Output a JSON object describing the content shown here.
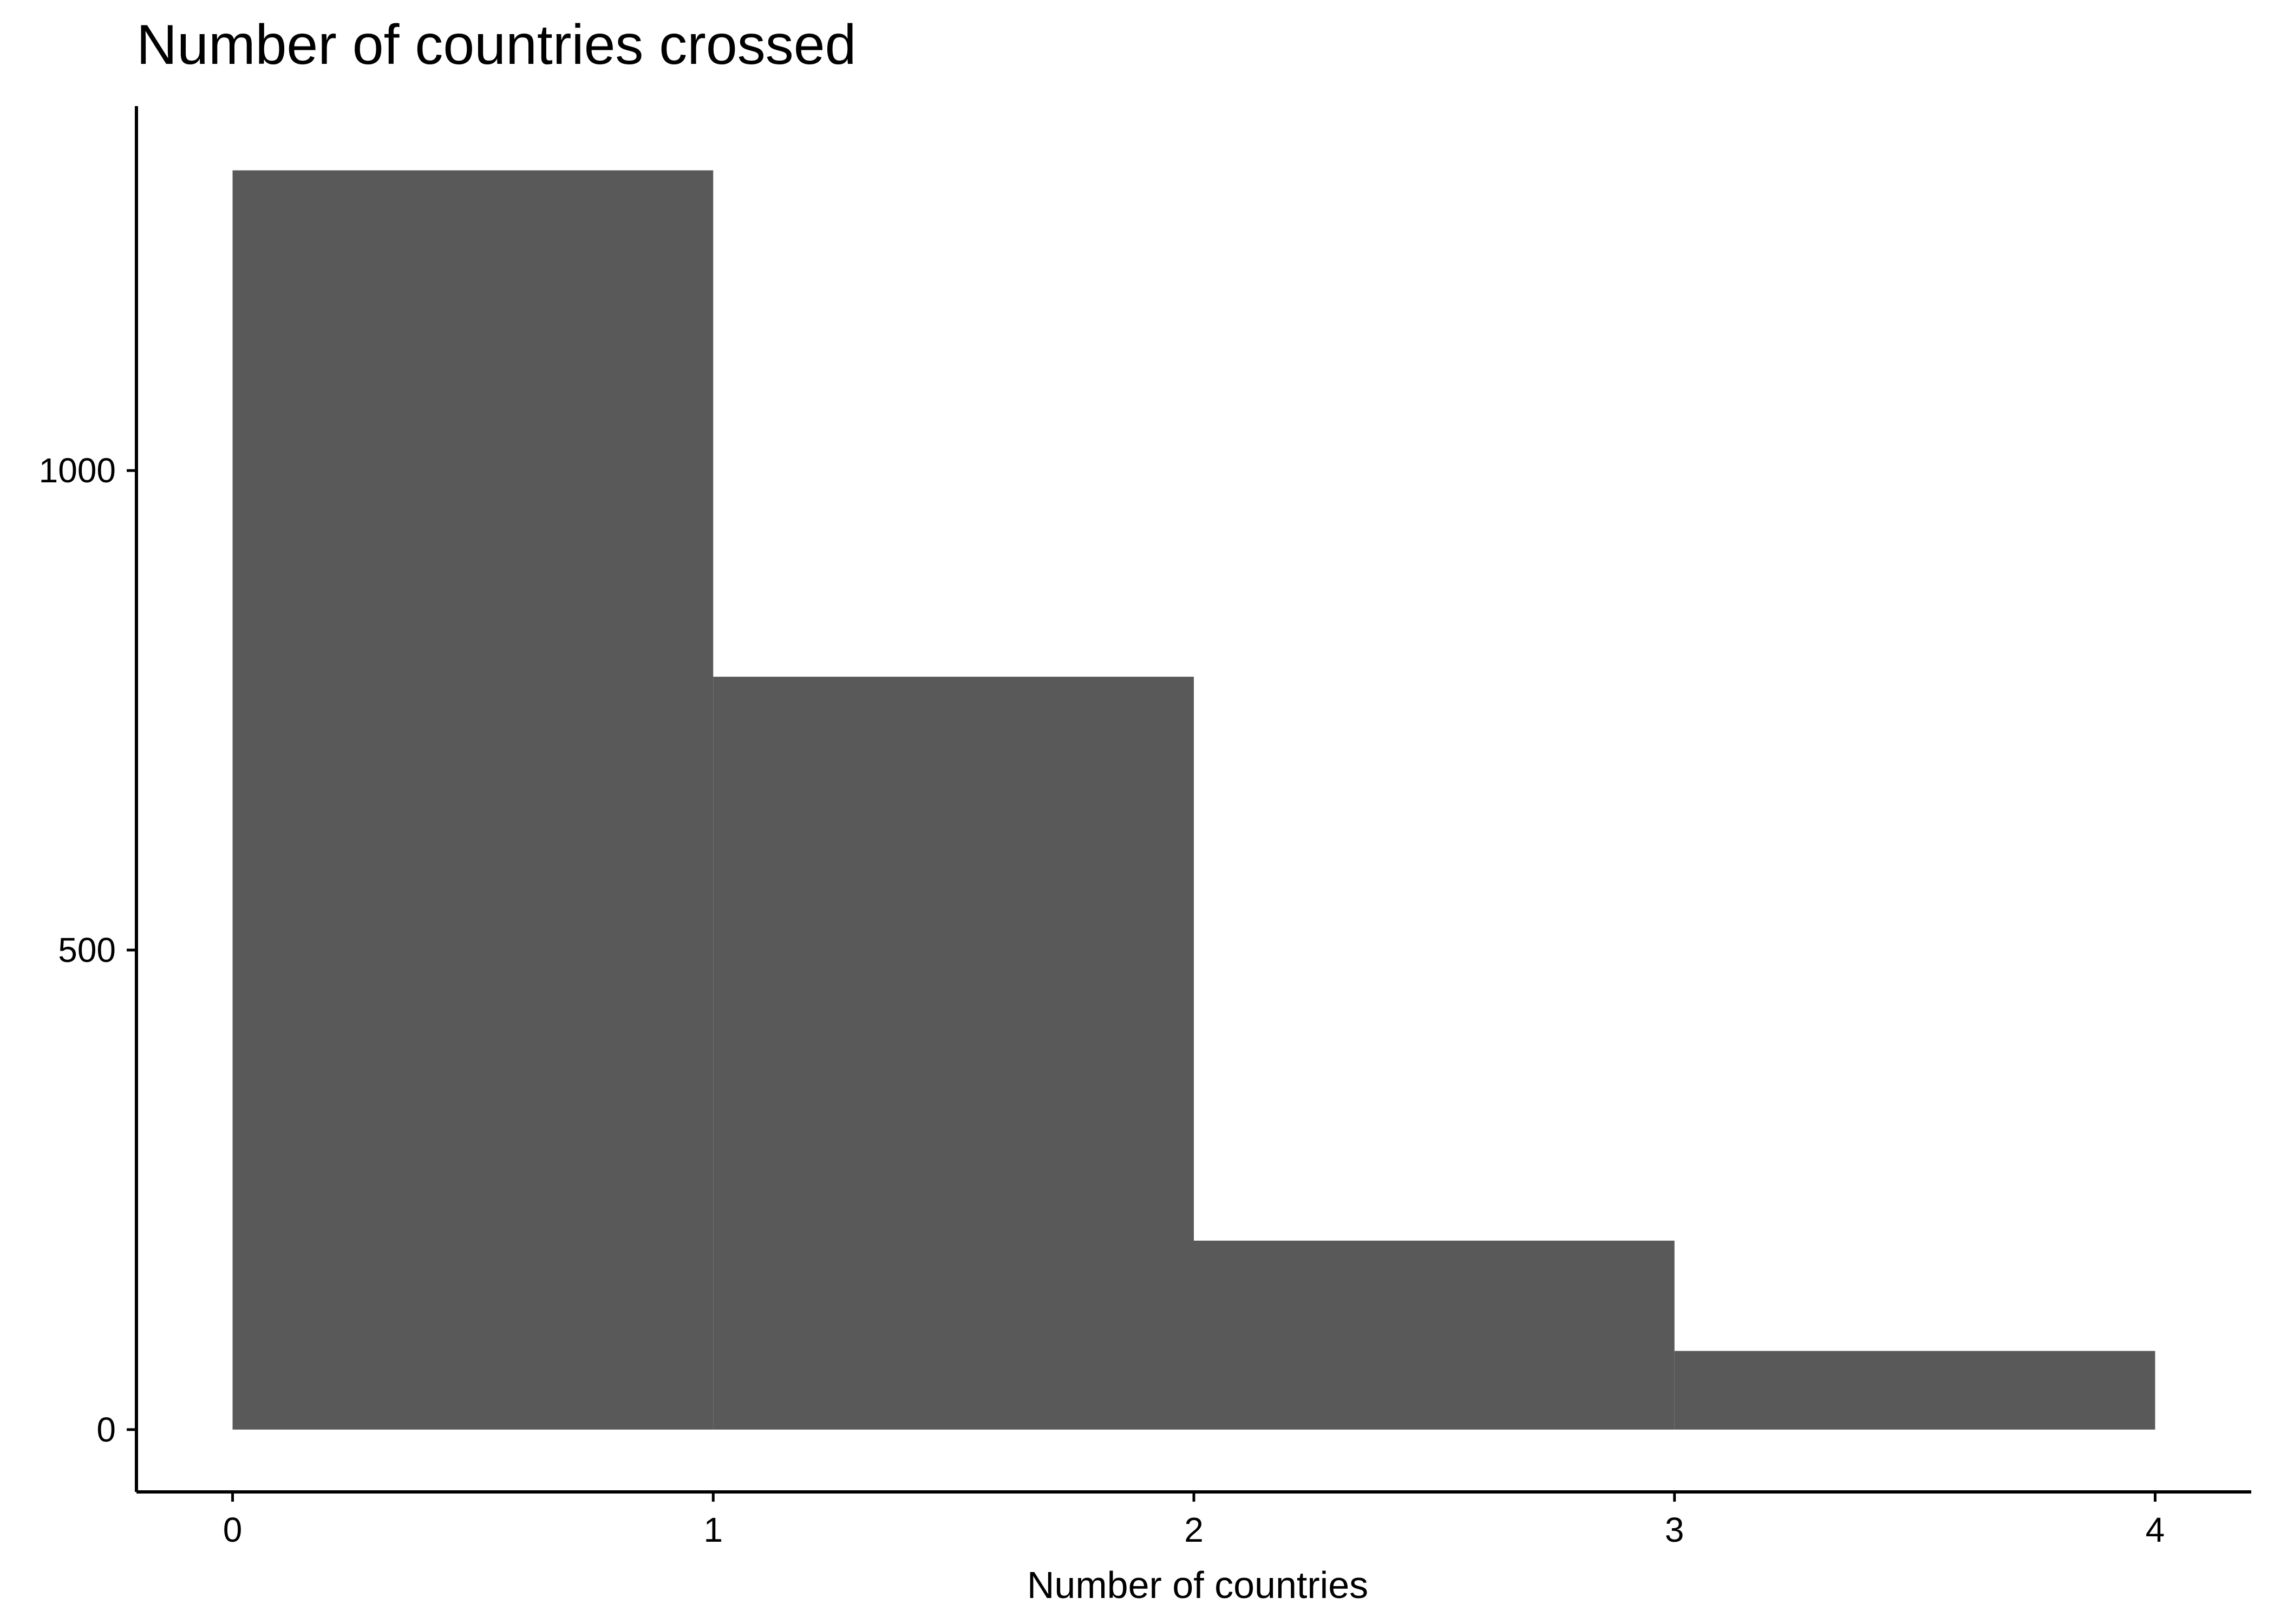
{
  "chart_data": {
    "type": "bar",
    "title": "Number of countries crossed",
    "xlabel": "Number of countries",
    "ylabel": "",
    "bins": [
      {
        "x0": 0,
        "x1": 1,
        "count": 1313
      },
      {
        "x0": 1,
        "x1": 2,
        "count": 785
      },
      {
        "x0": 2,
        "x1": 3,
        "count": 197
      },
      {
        "x0": 3,
        "x1": 4,
        "count": 82
      }
    ],
    "xticks": [
      0,
      1,
      2,
      3,
      4
    ],
    "yticks": [
      0,
      500,
      1000
    ],
    "xlim": [
      -0.2,
      4.2
    ],
    "ylim": [
      -65,
      1380
    ],
    "bar_color": "#595959",
    "grid": false,
    "legend": "none"
  }
}
